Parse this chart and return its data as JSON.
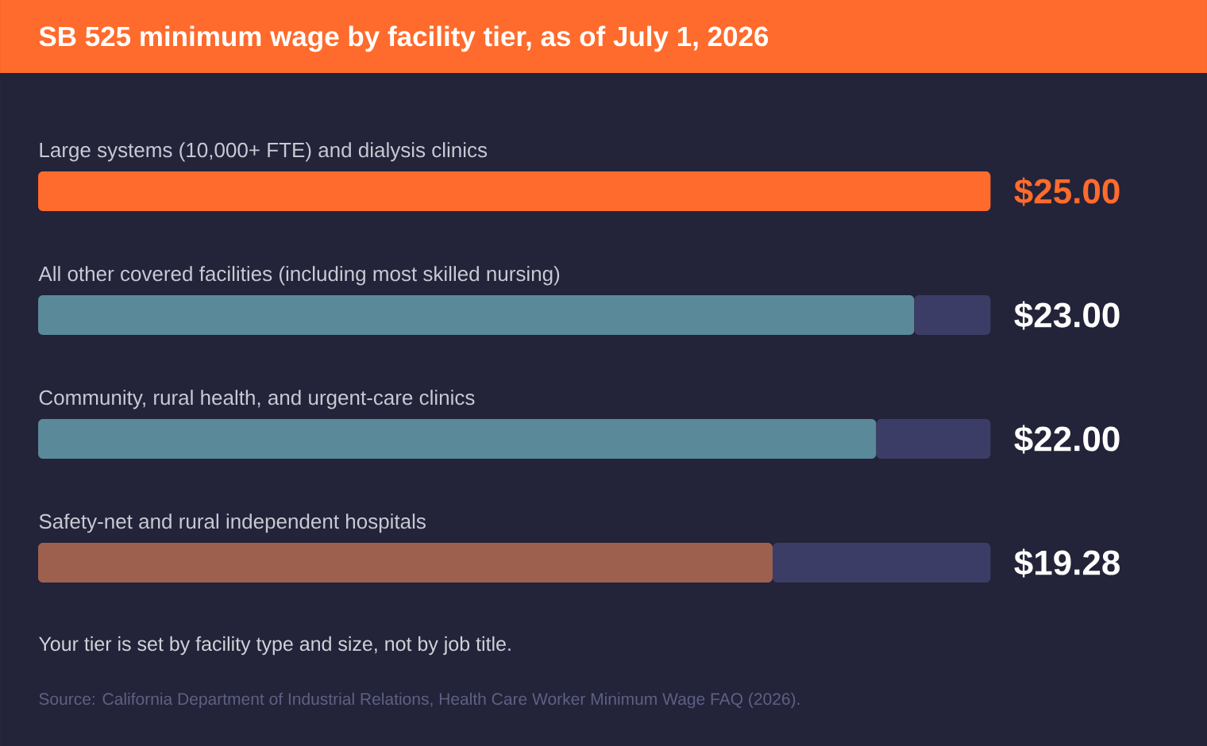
{
  "chart_data": {
    "type": "bar",
    "orientation": "horizontal",
    "stacked": true,
    "title": "SB 525 minimum wage by facility tier, as of July 1, 2026",
    "categories": [
      "Large systems (10,000+ FTE) and dialysis clinics",
      "All other covered facilities (including most skilled nursing)",
      "Community, rural health, and urgent-care clinics",
      "Safety-net and rural independent hospitals"
    ],
    "xlim": [
      0,
      25
    ],
    "tick_labels": "y",
    "series": [
      {
        "colors": [
          "#ff6b2c",
          "#5a8a9a",
          "#5a8a9a",
          "#9e604e"
        ],
        "values": [
          25,
          23,
          22,
          19.28
        ],
        "value_labels": [
          "$25.00",
          "$23.00",
          "$22.00",
          "$19.28"
        ]
      },
      {
        "color": "#3c3d66",
        "values": [
          0,
          2,
          3,
          5.72
        ]
      }
    ],
    "annotations": [
      "Your tier is set by facility type and size, not by job title.",
      "Source: California Department of Industrial Relations, Health Care Worker Minimum Wage FAQ (2026)."
    ]
  }
}
